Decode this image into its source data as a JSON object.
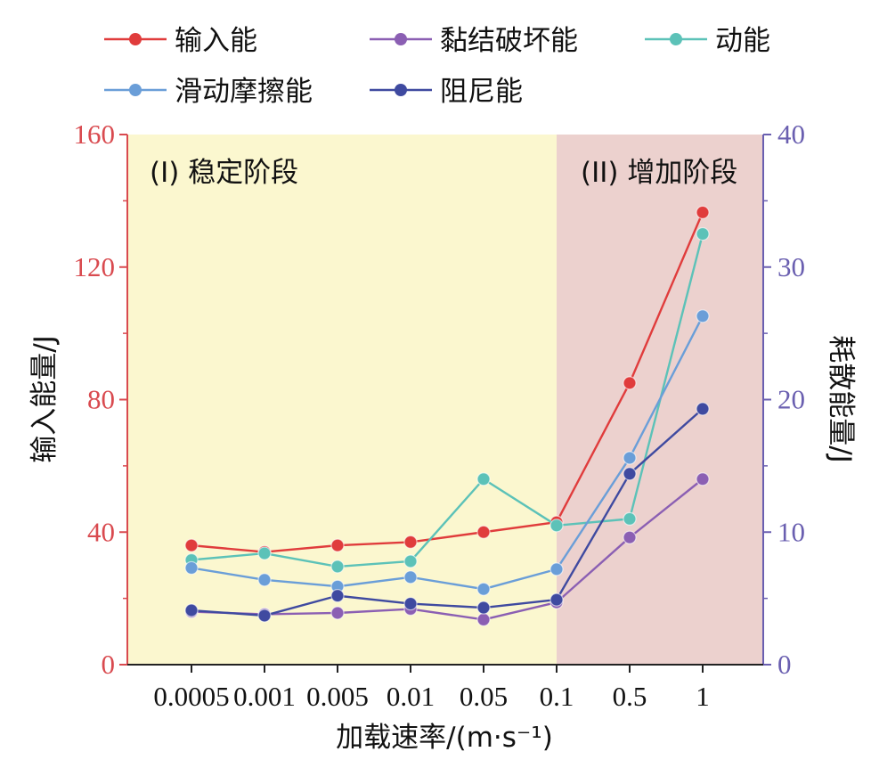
{
  "chart_data": {
    "type": "line",
    "xlabel": "加载速率/(m·s⁻¹)",
    "ylabel_left": "输入能量/J",
    "ylabel_right": "耗散能量/J",
    "categories": [
      "0.0005",
      "0.001",
      "0.005",
      "0.01",
      "0.05",
      "0.1",
      "0.5",
      "1"
    ],
    "ylim_left": [
      0,
      160
    ],
    "yticks_left": [
      0,
      40,
      80,
      120,
      160
    ],
    "ylim_right": [
      0,
      40
    ],
    "yticks_right": [
      0,
      10,
      20,
      30,
      40
    ],
    "regions": [
      {
        "label": "(I) 稳定阶段",
        "from_category": "0.0005",
        "to_category": "0.1",
        "color": "#fbf7cf"
      },
      {
        "label": "(II) 增加阶段",
        "from_category": "0.1",
        "to_category": "1",
        "color": "#ecd1ce"
      }
    ],
    "series": [
      {
        "name": "输入能",
        "axis": "left",
        "color": "#e03c3c",
        "values": [
          36,
          34,
          36,
          37,
          40,
          43,
          85,
          136.5
        ]
      },
      {
        "name": "黏结破坏能",
        "axis": "right",
        "color": "#8b5fb3",
        "values": [
          4.0,
          3.8,
          3.9,
          4.2,
          3.4,
          4.7,
          9.6,
          14.0
        ]
      },
      {
        "name": "动能",
        "axis": "right",
        "color": "#5cc2b8",
        "values": [
          7.9,
          8.4,
          7.4,
          7.8,
          14.0,
          10.5,
          11.0,
          32.5
        ]
      },
      {
        "name": "滑动摩擦能",
        "axis": "right",
        "color": "#6a9ed8",
        "values": [
          7.3,
          6.4,
          5.9,
          6.6,
          5.7,
          7.2,
          15.6,
          26.3
        ]
      },
      {
        "name": "阻尼能",
        "axis": "right",
        "color": "#3f4aa0",
        "values": [
          4.1,
          3.7,
          5.2,
          4.6,
          4.3,
          4.9,
          14.4,
          19.3
        ]
      }
    ],
    "left_axis_color": "#d94a4f",
    "right_axis_color": "#6a5fb0"
  }
}
